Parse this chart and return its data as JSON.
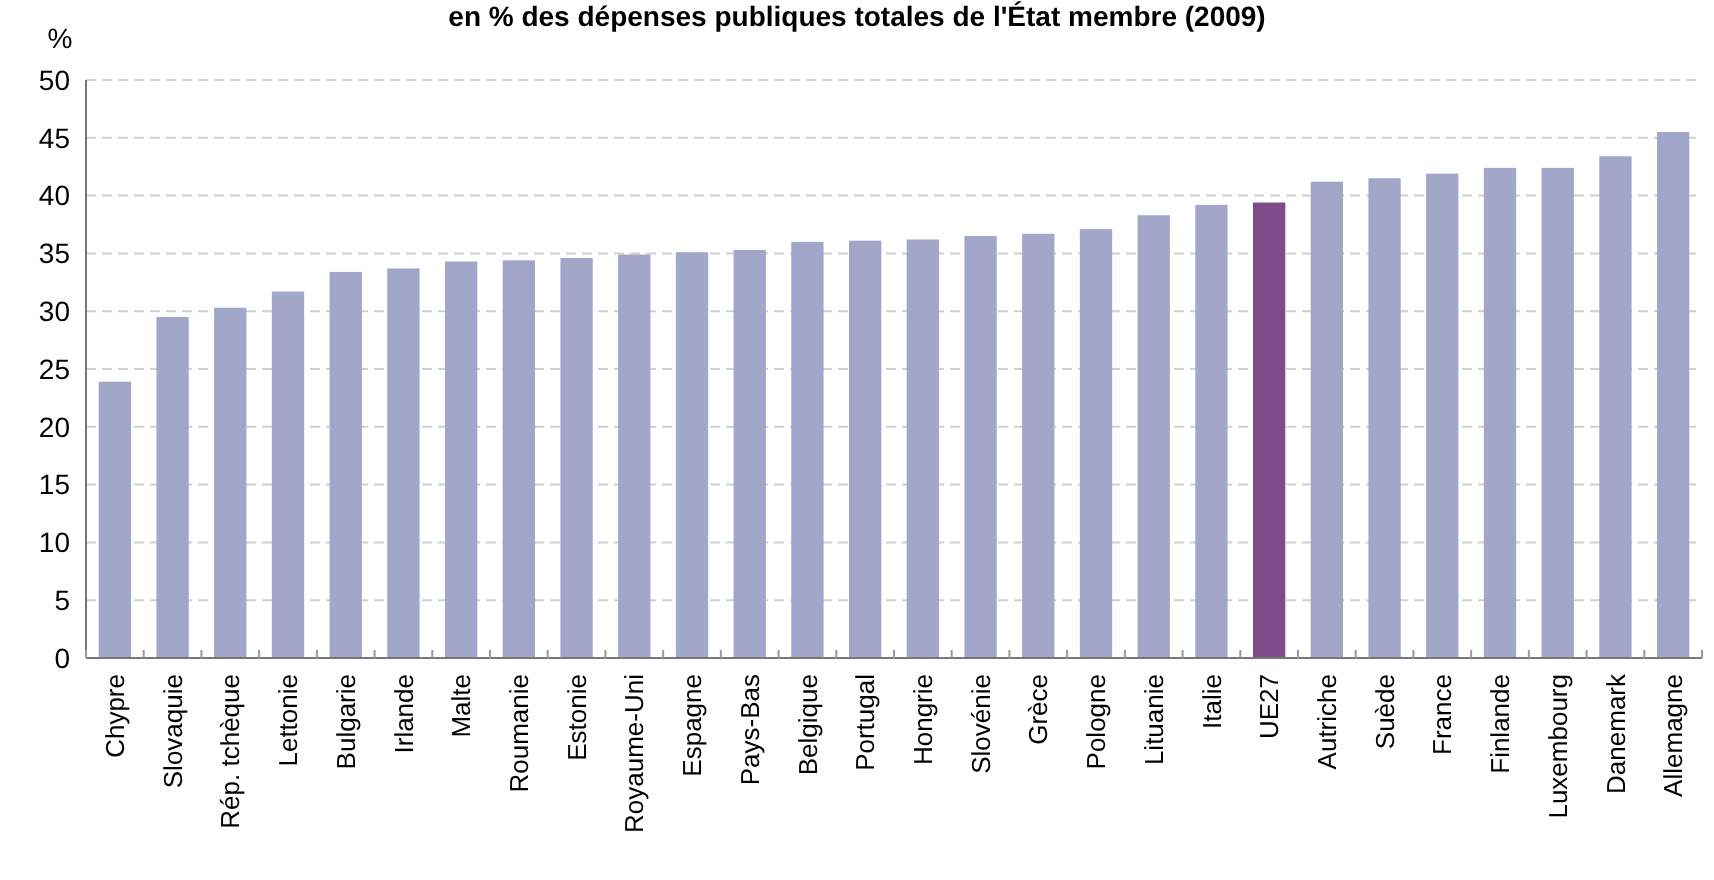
{
  "chart_data": {
    "type": "bar",
    "title": "en % des dépenses publiques totales de l'État membre (2009)",
    "ylabel": "%",
    "categories": [
      "Chypre",
      "Slovaquie",
      "Rép. tchèque",
      "Lettonie",
      "Bulgarie",
      "Irlande",
      "Malte",
      "Roumanie",
      "Estonie",
      "Royaume-Uni",
      "Espagne",
      "Pays-Bas",
      "Belgique",
      "Portugal",
      "Hongrie",
      "Slovénie",
      "Grèce",
      "Pologne",
      "Lituanie",
      "Italie",
      "UE27",
      "Autriche",
      "Suède",
      "France",
      "Finlande",
      "Luxembourg",
      "Danemark",
      "Allemagne"
    ],
    "values": [
      23.9,
      29.5,
      30.3,
      31.7,
      33.4,
      33.7,
      34.3,
      34.4,
      34.6,
      34.9,
      35.1,
      35.3,
      36.0,
      36.1,
      36.2,
      36.5,
      36.7,
      37.1,
      38.3,
      39.2,
      39.4,
      41.2,
      41.5,
      41.9,
      42.4,
      42.4,
      43.4,
      45.5
    ],
    "colors": [
      "#a2a7c9",
      "#a2a7c9",
      "#a2a7c9",
      "#a2a7c9",
      "#a2a7c9",
      "#a2a7c9",
      "#a2a7c9",
      "#a2a7c9",
      "#a2a7c9",
      "#a2a7c9",
      "#a2a7c9",
      "#a2a7c9",
      "#a2a7c9",
      "#a2a7c9",
      "#a2a7c9",
      "#a2a7c9",
      "#a2a7c9",
      "#a2a7c9",
      "#a2a7c9",
      "#a2a7c9",
      "#7e4a87",
      "#a2a7c9",
      "#a2a7c9",
      "#a2a7c9",
      "#a2a7c9",
      "#a2a7c9",
      "#a2a7c9",
      "#a2a7c9"
    ],
    "ylim": [
      0,
      50
    ],
    "yticks": [
      0,
      5,
      10,
      15,
      20,
      25,
      30,
      35,
      40,
      45,
      50
    ],
    "grid": "y"
  }
}
